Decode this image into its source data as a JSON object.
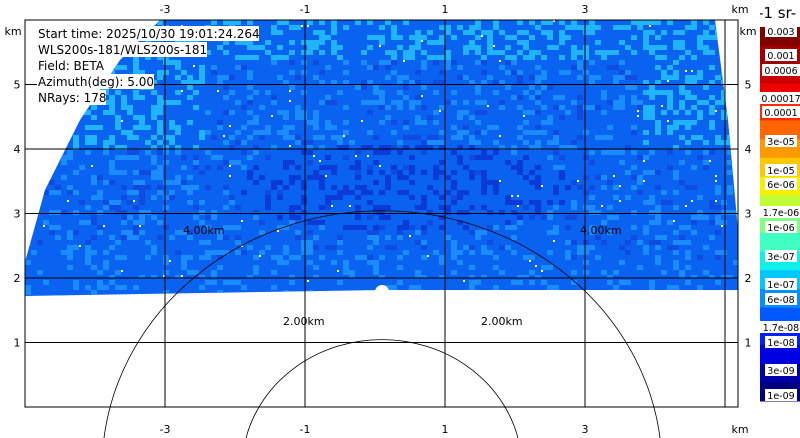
{
  "chart_data": {
    "type": "heatmap",
    "info": {
      "start_time": "Start time: 2025/10/30 19:01:24.264",
      "instrument": "WLS200s-181/WLS200s-181",
      "field": "Field: BETA",
      "azimuth": "Azimuth(deg): 5.00",
      "nrays": "NRays: 178"
    },
    "x_ticks": [
      "-3",
      "-1",
      "1",
      "3"
    ],
    "x_unit": "km",
    "y_ticks": [
      "5",
      "4",
      "3",
      "2",
      "1"
    ],
    "y_unit": "km",
    "x_tick_values": [
      -3,
      -1,
      1,
      3
    ],
    "y_tick_values": [
      5,
      4,
      3,
      2,
      1
    ],
    "grid": true,
    "range_rings": [
      {
        "label": "4.00km",
        "km": 4
      },
      {
        "label": "2.00km",
        "km": 2
      }
    ],
    "colorbar": {
      "title": "-1 sr-",
      "labels": [
        "0.003",
        "0.001",
        "0.0006",
        "0.00017",
        "0.0001",
        "3e-05",
        "1e-05",
        "6e-06",
        "1.7e-06",
        "1e-06",
        "3e-07",
        "1e-07",
        "6e-08",
        "1.7e-08",
        "1e-08",
        "3e-09",
        "1e-09"
      ],
      "colors": [
        "#800000",
        "#a00000",
        "#c80000",
        "#ee0000",
        "#ff2a00",
        "#ff6600",
        "#ff9900",
        "#ffc800",
        "#f5f000",
        "#c0ff36",
        "#80ff80",
        "#40ffc0",
        "#10f0e8",
        "#00c8ff",
        "#0090ff",
        "#0058ff",
        "#0020ff",
        "#0000e0",
        "#0000a8",
        "#00007a"
      ]
    },
    "dominant_colors": [
      "#0a62f0",
      "#1a8cff",
      "#0f4be0",
      "#20b4ff"
    ]
  }
}
